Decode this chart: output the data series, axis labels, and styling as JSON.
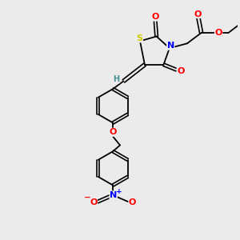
{
  "bg_color": "#ebebeb",
  "atom_colors": {
    "C": "#000000",
    "H": "#4a9090",
    "O": "#ff0000",
    "N": "#0000ff",
    "S": "#cccc00"
  },
  "font_size_atom": 8,
  "font_size_small": 6.5
}
